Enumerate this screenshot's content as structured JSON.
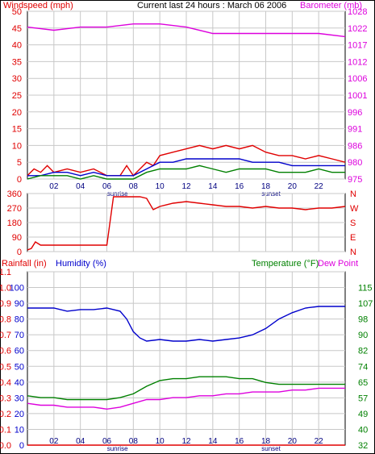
{
  "title": "Current last 24 hours : March 06 2006",
  "colors": {
    "wind": "#e00000",
    "wind_avg": "#0000cc",
    "wind_green": "#008000",
    "baro": "#dd00dd",
    "dir": "#e00000",
    "rain": "#e00000",
    "humidity": "#0000cc",
    "temp": "#008000",
    "dew": "#dd00dd",
    "grid": "#c8c8c8"
  },
  "time_labels": [
    "02",
    "04",
    "06",
    "08",
    "10",
    "12",
    "14",
    "16",
    "18",
    "20",
    "22"
  ],
  "sunrise_label": "sunrise",
  "sunset_label": "sunset",
  "chart_data": [
    {
      "type": "line",
      "name": "wind-baro",
      "left_label": "Windspeed (mph)",
      "right_label": "Barometer (mb)",
      "left_ticks": [
        0,
        5,
        10,
        15,
        20,
        25,
        30,
        35,
        40,
        45,
        50
      ],
      "right_ticks": [
        975,
        980,
        986,
        991,
        996,
        1001,
        1006,
        1012,
        1017,
        1022,
        1028
      ],
      "left_range": [
        0,
        50
      ],
      "right_range": [
        975,
        1028
      ],
      "x_range": [
        0,
        24
      ],
      "series": [
        {
          "key": "baro",
          "axis": "right",
          "x": [
            0,
            2,
            4,
            6,
            8,
            10,
            12,
            14,
            16,
            18,
            20,
            22,
            24
          ],
          "y": [
            1023,
            1022,
            1023,
            1023,
            1024,
            1024,
            1023,
            1021,
            1021,
            1021,
            1021,
            1021,
            1020
          ]
        },
        {
          "key": "wind",
          "axis": "left",
          "x": [
            0,
            0.5,
            1,
            1.5,
            2,
            3,
            4,
            5,
            6,
            7,
            7.5,
            8,
            8.5,
            9,
            9.5,
            10,
            11,
            12,
            13,
            14,
            15,
            16,
            17,
            18,
            19,
            20,
            21,
            22,
            23,
            24
          ],
          "y": [
            1,
            3,
            2,
            4,
            2,
            3,
            2,
            3,
            1,
            1,
            4,
            1,
            3,
            5,
            4,
            7,
            8,
            9,
            10,
            9,
            10,
            9,
            10,
            8,
            7,
            7,
            6,
            7,
            6,
            5
          ]
        },
        {
          "key": "wind_avg",
          "axis": "left",
          "x": [
            0,
            1,
            2,
            3,
            4,
            5,
            6,
            7,
            8,
            9,
            10,
            11,
            12,
            13,
            14,
            15,
            16,
            17,
            18,
            19,
            20,
            21,
            22,
            23,
            24
          ],
          "y": [
            1,
            1,
            2,
            2,
            1,
            2,
            1,
            1,
            1,
            3,
            5,
            5,
            6,
            6,
            6,
            6,
            6,
            5,
            5,
            5,
            4,
            4,
            4,
            4,
            4
          ]
        },
        {
          "key": "wind_green",
          "axis": "left",
          "x": [
            0,
            1,
            2,
            3,
            4,
            5,
            6,
            7,
            8,
            9,
            10,
            11,
            12,
            13,
            14,
            15,
            16,
            17,
            18,
            19,
            20,
            21,
            22,
            23,
            24
          ],
          "y": [
            0,
            1,
            1,
            1,
            0,
            1,
            0,
            0,
            0,
            2,
            3,
            3,
            3,
            4,
            3,
            2,
            3,
            3,
            3,
            2,
            2,
            2,
            3,
            2,
            2
          ]
        }
      ]
    },
    {
      "type": "line",
      "name": "wind-direction",
      "left_ticks": [
        0,
        90,
        180,
        270,
        360
      ],
      "right_labels": [
        "N",
        "W",
        "S",
        "E",
        "N"
      ],
      "left_range": [
        0,
        360
      ],
      "x_range": [
        0,
        24
      ],
      "series": [
        {
          "key": "dir",
          "axis": "left",
          "x": [
            0,
            0.3,
            0.6,
            1,
            2,
            3,
            4,
            5,
            6,
            6.5,
            7,
            7.5,
            8,
            8.5,
            9,
            9.5,
            10,
            11,
            12,
            13,
            14,
            15,
            16,
            17,
            18,
            19,
            20,
            21,
            22,
            23,
            24
          ],
          "y": [
            10,
            20,
            60,
            40,
            40,
            40,
            40,
            40,
            40,
            340,
            340,
            340,
            340,
            340,
            330,
            260,
            280,
            300,
            310,
            300,
            290,
            280,
            280,
            270,
            280,
            270,
            270,
            260,
            270,
            270,
            280
          ]
        }
      ]
    },
    {
      "type": "line",
      "name": "rain-humidity-temp",
      "left_label": "Rainfall (in)",
      "humidity_label": "Humidity (%)",
      "temp_label": "Temperature (°F)",
      "dew_label": "Dew Point",
      "rain_ticks": [
        0.0,
        0.1,
        0.2,
        0.3,
        0.4,
        0.5,
        0.6,
        0.7,
        0.8,
        0.9,
        1.0,
        1.1
      ],
      "humidity_ticks": [
        0,
        10,
        20,
        30,
        40,
        50,
        60,
        70,
        80,
        90,
        100
      ],
      "temp_ticks": [
        32,
        40,
        49,
        57,
        65,
        74,
        82,
        90,
        98,
        107,
        115
      ],
      "humidity_range": [
        0,
        100
      ],
      "temp_range": [
        32,
        115
      ],
      "x_range": [
        0,
        24
      ],
      "series": [
        {
          "key": "humidity",
          "axis": "humidity",
          "x": [
            0,
            1,
            2,
            3,
            4,
            5,
            6,
            7,
            7.5,
            8,
            8.5,
            9,
            10,
            11,
            12,
            13,
            14,
            15,
            16,
            17,
            18,
            19,
            20,
            21,
            22,
            23,
            24
          ],
          "y": [
            87,
            87,
            87,
            85,
            86,
            86,
            87,
            85,
            80,
            72,
            68,
            66,
            67,
            66,
            66,
            67,
            66,
            67,
            68,
            70,
            74,
            80,
            84,
            87,
            88,
            88,
            88
          ]
        },
        {
          "key": "temp",
          "axis": "temp",
          "x": [
            0,
            1,
            2,
            3,
            4,
            5,
            6,
            7,
            8,
            9,
            10,
            11,
            12,
            13,
            14,
            15,
            16,
            17,
            18,
            19,
            20,
            21,
            22,
            23,
            24
          ],
          "y": [
            58,
            57,
            57,
            56,
            56,
            56,
            56,
            57,
            59,
            63,
            66,
            67,
            67,
            68,
            68,
            68,
            67,
            67,
            65,
            64,
            64,
            64,
            64,
            64,
            64
          ]
        },
        {
          "key": "dew",
          "axis": "temp",
          "x": [
            0,
            1,
            2,
            3,
            4,
            5,
            6,
            7,
            8,
            9,
            10,
            11,
            12,
            13,
            14,
            15,
            16,
            17,
            18,
            19,
            20,
            21,
            22,
            23,
            24
          ],
          "y": [
            54,
            53,
            53,
            52,
            52,
            52,
            51,
            52,
            54,
            56,
            56,
            57,
            57,
            58,
            58,
            59,
            59,
            60,
            60,
            60,
            61,
            61,
            62,
            62,
            62
          ]
        },
        {
          "key": "rain",
          "axis": "rain",
          "x": [
            0,
            24
          ],
          "y": [
            0.0,
            0.0
          ]
        }
      ]
    }
  ]
}
